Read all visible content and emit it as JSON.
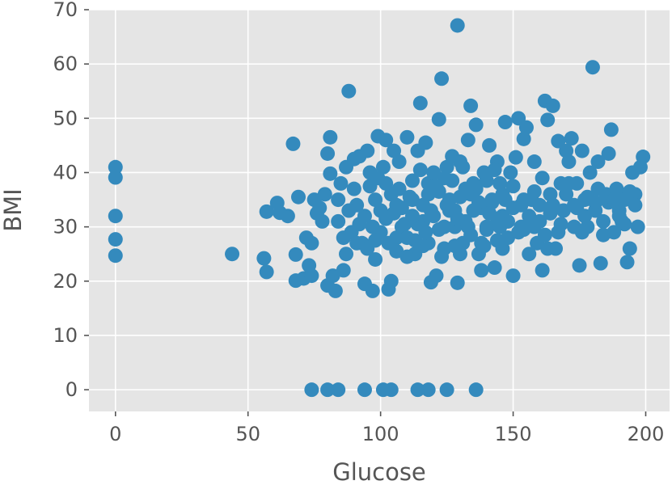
{
  "chart_data": {
    "type": "scatter",
    "title": "",
    "xlabel": "Glucose",
    "ylabel": "BMI",
    "xlim": [
      -10,
      209
    ],
    "ylim": [
      -4,
      70
    ],
    "xticks": [
      0,
      50,
      100,
      150,
      200
    ],
    "yticks": [
      0,
      10,
      20,
      30,
      40,
      50,
      60,
      70
    ],
    "grid": true,
    "style": "ggplot",
    "colors": {
      "background": "#E5E5E5",
      "grid": "#FFFFFF",
      "marker": "#348ABD",
      "text": "#555555"
    },
    "series": [
      {
        "points": [
          [
            0,
            41.0
          ],
          [
            0,
            39.1
          ],
          [
            0,
            32.0
          ],
          [
            0,
            27.7
          ],
          [
            0,
            24.7
          ],
          [
            44,
            25.0
          ],
          [
            56,
            24.2
          ],
          [
            57,
            21.7
          ],
          [
            57,
            32.8
          ],
          [
            61,
            34.4
          ],
          [
            62,
            32.6
          ],
          [
            65,
            32.0
          ],
          [
            67,
            45.3
          ],
          [
            68,
            24.9
          ],
          [
            68,
            20.1
          ],
          [
            69,
            35.5
          ],
          [
            71,
            20.5
          ],
          [
            72,
            28.0
          ],
          [
            73,
            22.9
          ],
          [
            74,
            27.0
          ],
          [
            74,
            21.0
          ],
          [
            75,
            35.0
          ],
          [
            76,
            32.5
          ],
          [
            77,
            33.5
          ],
          [
            78,
            31.0
          ],
          [
            79,
            36.0
          ],
          [
            80,
            43.5
          ],
          [
            80,
            19.2
          ],
          [
            81,
            46.5
          ],
          [
            81,
            39.8
          ],
          [
            82,
            21.0
          ],
          [
            83,
            18.2
          ],
          [
            84,
            35.0
          ],
          [
            85,
            38.0
          ],
          [
            86,
            22.0
          ],
          [
            87,
            41.0
          ],
          [
            88,
            55.0
          ],
          [
            89,
            29.0
          ],
          [
            90,
            42.5
          ],
          [
            91,
            34.0
          ],
          [
            92,
            43.0
          ],
          [
            93,
            27.0
          ],
          [
            94,
            19.5
          ],
          [
            95,
            44.0
          ],
          [
            96,
            37.5
          ],
          [
            97,
            18.2
          ],
          [
            98,
            24.0
          ],
          [
            99,
            46.7
          ],
          [
            100,
            33.0
          ],
          [
            101,
            41.0
          ],
          [
            102,
            46.0
          ],
          [
            103,
            18.5
          ],
          [
            104,
            20.0
          ],
          [
            105,
            44.0
          ],
          [
            106,
            28.0
          ],
          [
            107,
            42.0
          ],
          [
            108,
            30.0
          ],
          [
            110,
            46.5
          ],
          [
            112,
            35.0
          ],
          [
            113,
            25.0
          ],
          [
            114,
            44.0
          ],
          [
            115,
            52.8
          ],
          [
            116,
            31.0
          ],
          [
            117,
            45.5
          ],
          [
            118,
            38.0
          ],
          [
            119,
            19.8
          ],
          [
            120,
            40.0
          ],
          [
            121,
            21.0
          ],
          [
            122,
            49.8
          ],
          [
            123,
            57.3
          ],
          [
            124,
            26.0
          ],
          [
            125,
            41.0
          ],
          [
            126,
            35.0
          ],
          [
            127,
            43.0
          ],
          [
            128,
            30.0
          ],
          [
            129,
            67.1
          ],
          [
            129,
            19.7
          ],
          [
            130,
            42.0
          ],
          [
            131,
            27.0
          ],
          [
            132,
            37.0
          ],
          [
            133,
            46.0
          ],
          [
            134,
            52.3
          ],
          [
            135,
            33.0
          ],
          [
            136,
            48.8
          ],
          [
            137,
            25.0
          ],
          [
            138,
            22.0
          ],
          [
            139,
            40.0
          ],
          [
            140,
            30.0
          ],
          [
            141,
            45.0
          ],
          [
            142,
            35.0
          ],
          [
            143,
            22.5
          ],
          [
            144,
            42.0
          ],
          [
            145,
            38.0
          ],
          [
            146,
            32.0
          ],
          [
            147,
            49.3
          ],
          [
            148,
            28.0
          ],
          [
            150,
            21.0
          ],
          [
            151,
            42.8
          ],
          [
            152,
            50.0
          ],
          [
            153,
            30.0
          ],
          [
            154,
            46.2
          ],
          [
            155,
            48.3
          ],
          [
            156,
            25.0
          ],
          [
            157,
            35.0
          ],
          [
            158,
            42.0
          ],
          [
            159,
            27.0
          ],
          [
            160,
            31.0
          ],
          [
            161,
            22.0
          ],
          [
            162,
            53.2
          ],
          [
            163,
            49.7
          ],
          [
            164,
            36.0
          ],
          [
            165,
            52.3
          ],
          [
            166,
            26.0
          ],
          [
            167,
            45.8
          ],
          [
            168,
            38.0
          ],
          [
            169,
            33.0
          ],
          [
            170,
            44.0
          ],
          [
            171,
            42.0
          ],
          [
            172,
            46.3
          ],
          [
            173,
            30.0
          ],
          [
            174,
            38.0
          ],
          [
            175,
            22.9
          ],
          [
            176,
            44.0
          ],
          [
            177,
            35.0
          ],
          [
            178,
            30.0
          ],
          [
            179,
            40.0
          ],
          [
            180,
            59.4
          ],
          [
            181,
            33.0
          ],
          [
            182,
            42.0
          ],
          [
            183,
            23.3
          ],
          [
            184,
            28.5
          ],
          [
            185,
            36.0
          ],
          [
            186,
            43.5
          ],
          [
            187,
            47.9
          ],
          [
            188,
            29.0
          ],
          [
            189,
            37.0
          ],
          [
            190,
            33.0
          ],
          [
            191,
            31.0
          ],
          [
            192,
            35.0
          ],
          [
            193,
            23.5
          ],
          [
            194,
            26.0
          ],
          [
            195,
            40.0
          ],
          [
            196,
            36.0
          ],
          [
            197,
            30.0
          ],
          [
            198,
            41.0
          ],
          [
            199,
            42.9
          ],
          [
            74,
            0
          ],
          [
            80,
            0
          ],
          [
            84,
            0
          ],
          [
            94,
            0
          ],
          [
            101,
            0
          ],
          [
            104,
            0
          ],
          [
            114,
            0
          ],
          [
            118,
            0
          ],
          [
            125,
            0
          ],
          [
            136,
            0
          ],
          [
            88,
            33.0
          ],
          [
            92,
            30.5
          ],
          [
            95,
            26.0
          ],
          [
            98,
            35.0
          ],
          [
            100,
            29.0
          ],
          [
            102,
            31.5
          ],
          [
            104,
            36.0
          ],
          [
            106,
            25.5
          ],
          [
            108,
            33.5
          ],
          [
            110,
            28.0
          ],
          [
            112,
            38.5
          ],
          [
            114,
            30.5
          ],
          [
            116,
            34.0
          ],
          [
            118,
            27.0
          ],
          [
            120,
            32.0
          ],
          [
            122,
            36.5
          ],
          [
            124,
            30.0
          ],
          [
            126,
            33.0
          ],
          [
            128,
            26.5
          ],
          [
            130,
            35.5
          ],
          [
            132,
            31.0
          ],
          [
            134,
            28.5
          ],
          [
            136,
            37.0
          ],
          [
            138,
            33.5
          ],
          [
            140,
            29.5
          ],
          [
            142,
            34.5
          ],
          [
            144,
            27.5
          ],
          [
            146,
            36.0
          ],
          [
            148,
            31.0
          ],
          [
            150,
            33.5
          ],
          [
            152,
            29.0
          ],
          [
            154,
            35.0
          ],
          [
            156,
            32.0
          ],
          [
            158,
            30.0
          ],
          [
            160,
            34.0
          ],
          [
            86,
            28.0
          ],
          [
            90,
            37.0
          ],
          [
            94,
            32.0
          ],
          [
            96,
            40.0
          ],
          [
            98,
            27.5
          ],
          [
            102,
            38.0
          ],
          [
            106,
            34.0
          ],
          [
            110,
            24.5
          ],
          [
            112,
            32.0
          ],
          [
            116,
            26.5
          ],
          [
            118,
            36.0
          ],
          [
            122,
            29.5
          ],
          [
            124,
            39.0
          ],
          [
            128,
            33.0
          ],
          [
            130,
            25.0
          ],
          [
            134,
            36.0
          ],
          [
            138,
            27.0
          ],
          [
            140,
            38.5
          ],
          [
            144,
            31.5
          ],
          [
            146,
            26.0
          ],
          [
            150,
            37.5
          ],
          [
            154,
            29.5
          ],
          [
            158,
            36.5
          ],
          [
            162,
            28.5
          ],
          [
            164,
            32.5
          ],
          [
            168,
            30.5
          ],
          [
            170,
            36.0
          ],
          [
            174,
            33.5
          ],
          [
            176,
            29.0
          ],
          [
            178,
            35.5
          ],
          [
            182,
            37.0
          ],
          [
            186,
            34.5
          ],
          [
            190,
            32.0
          ],
          [
            194,
            36.5
          ],
          [
            196,
            34.0
          ],
          [
            84,
            31.0
          ],
          [
            87,
            25.0
          ],
          [
            91,
            27.0
          ],
          [
            97,
            30.0
          ],
          [
            99,
            39.0
          ],
          [
            103,
            27.0
          ],
          [
            105,
            32.5
          ],
          [
            107,
            37.0
          ],
          [
            109,
            30.5
          ],
          [
            111,
            35.5
          ],
          [
            113,
            27.5
          ],
          [
            115,
            40.5
          ],
          [
            117,
            29.0
          ],
          [
            119,
            33.0
          ],
          [
            121,
            37.5
          ],
          [
            123,
            24.5
          ],
          [
            125,
            34.0
          ],
          [
            127,
            38.5
          ],
          [
            129,
            31.5
          ],
          [
            131,
            41.0
          ],
          [
            133,
            30.0
          ],
          [
            135,
            38.0
          ],
          [
            137,
            34.5
          ],
          [
            139,
            26.5
          ],
          [
            141,
            32.5
          ],
          [
            143,
            40.5
          ],
          [
            145,
            30.0
          ],
          [
            147,
            35.0
          ],
          [
            149,
            40.0
          ],
          [
            153,
            34.0
          ],
          [
            157,
            31.0
          ],
          [
            161,
            39.0
          ],
          [
            163,
            26.0
          ],
          [
            165,
            34.0
          ],
          [
            167,
            29.0
          ],
          [
            171,
            38.0
          ],
          [
            173,
            34.0
          ],
          [
            177,
            32.0
          ],
          [
            181,
            34.5
          ],
          [
            184,
            31.0
          ],
          [
            188,
            35.0
          ],
          [
            192,
            30.5
          ]
        ]
      }
    ]
  }
}
